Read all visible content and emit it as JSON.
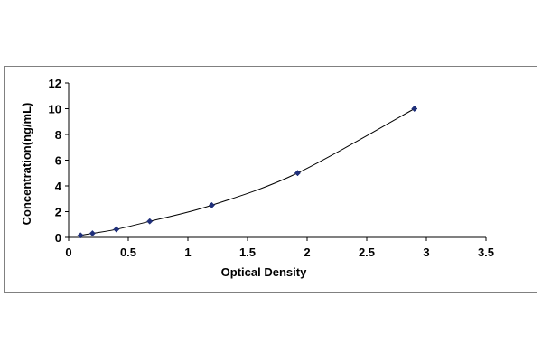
{
  "chart_data": {
    "type": "scatter",
    "xlabel": "Optical Density",
    "ylabel": "Concentration(ng/mL)",
    "xlim": [
      0,
      3.5
    ],
    "ylim": [
      0,
      12
    ],
    "x_ticks": [
      "0",
      "0.5",
      "1",
      "1.5",
      "2",
      "2.5",
      "3",
      "3.5"
    ],
    "y_ticks": [
      "0",
      "2",
      "4",
      "6",
      "8",
      "10",
      "12"
    ],
    "grid": false,
    "legend": "none",
    "marker_color": "#1f2f7a",
    "curve_color": "#000000",
    "series": [
      {
        "x": [
          0.1,
          0.2,
          0.4,
          0.68,
          1.2,
          1.92,
          2.9
        ],
        "y": [
          0.156,
          0.312,
          0.625,
          1.25,
          2.5,
          5,
          10
        ],
        "trendline": "smooth"
      }
    ]
  }
}
